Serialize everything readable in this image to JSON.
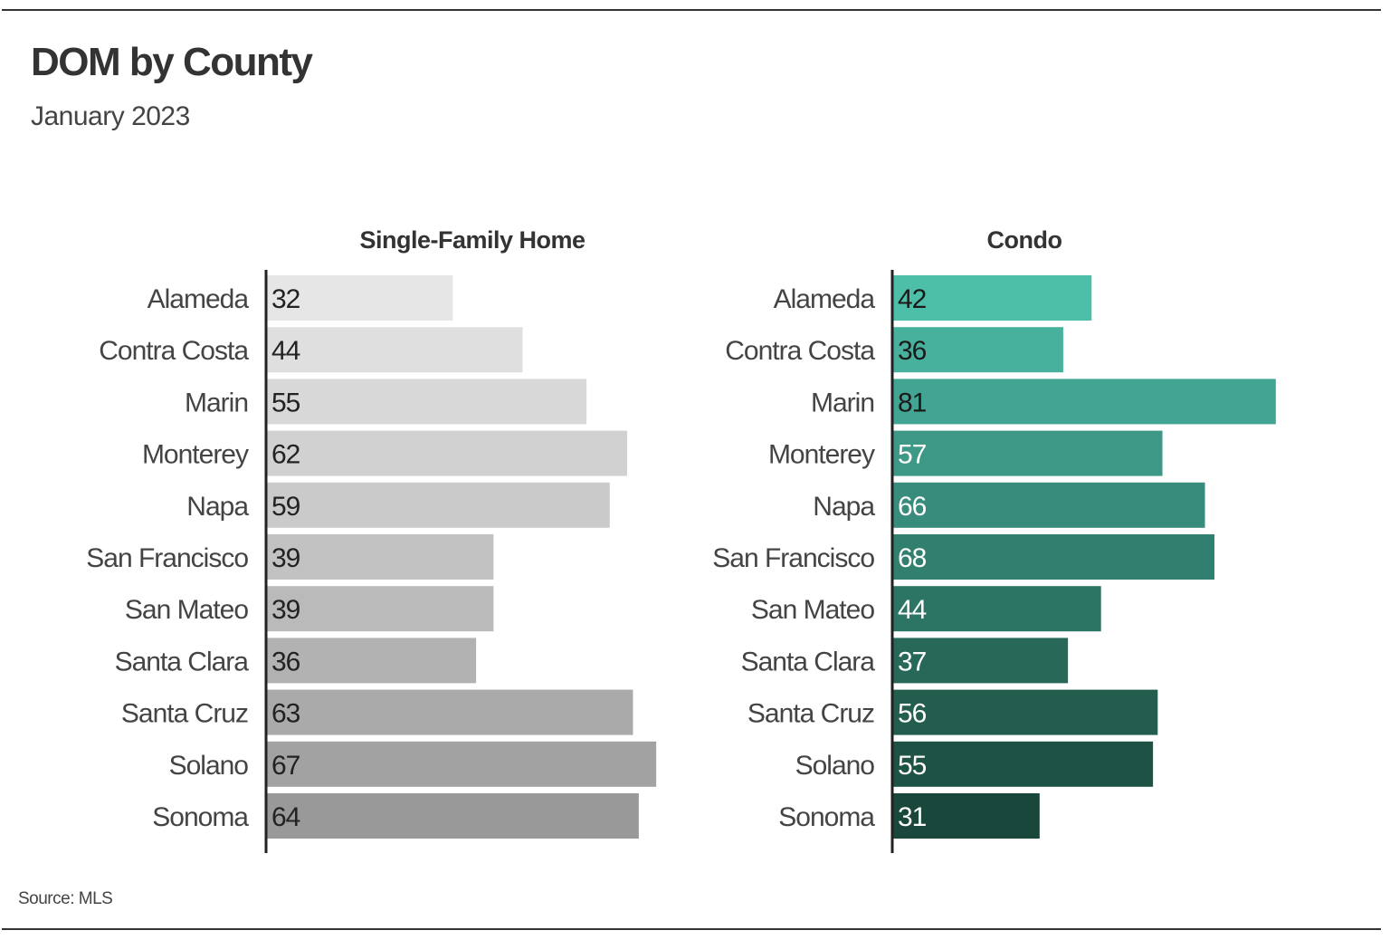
{
  "chart_data": {
    "type": "bar",
    "orientation": "horizontal",
    "title": "DOM by County",
    "subtitle": "January 2023",
    "source": "Source: MLS",
    "categories": [
      "Alameda",
      "Contra Costa",
      "Marin",
      "Monterey",
      "Napa",
      "San Francisco",
      "San Mateo",
      "Santa Clara",
      "Santa Cruz",
      "Solano",
      "Sonoma"
    ],
    "series": [
      {
        "name": "Single-Family Home",
        "values": [
          32,
          44,
          55,
          62,
          59,
          39,
          39,
          36,
          63,
          67,
          64
        ],
        "colors": [
          "#e6e6e6",
          "#dfdfdf",
          "#d8d8d8",
          "#d1d1d1",
          "#cacaca",
          "#c2c2c2",
          "#bababa",
          "#b2b2b2",
          "#aaaaaa",
          "#a2a2a2",
          "#999999"
        ],
        "label_color": "#222222"
      },
      {
        "name": "Condo",
        "values": [
          42,
          36,
          81,
          57,
          66,
          68,
          44,
          37,
          56,
          55,
          31
        ],
        "colors": [
          "#4dbfa9",
          "#48b19d",
          "#42a593",
          "#3d9886",
          "#378c7b",
          "#31806f",
          "#2c7464",
          "#276858",
          "#225d4e",
          "#1d5244",
          "#19473b"
        ],
        "label_colors": [
          "#1a1a1a",
          "#1a1a1a",
          "#1a1a1a",
          "#ffffff",
          "#ffffff",
          "#ffffff",
          "#ffffff",
          "#ffffff",
          "#ffffff",
          "#ffffff",
          "#ffffff"
        ]
      }
    ],
    "xlim": [
      0,
      81
    ]
  }
}
